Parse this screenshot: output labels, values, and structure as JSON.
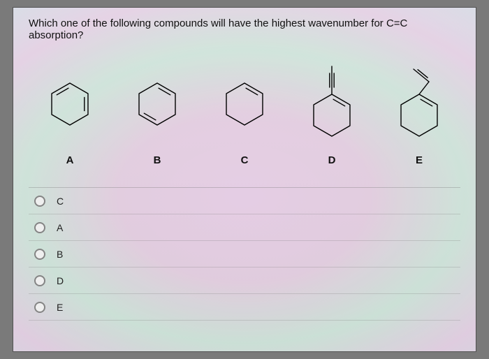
{
  "question": "Which one of the following compounds will have the highest wavenumber for C=C absorption?",
  "structures": {
    "stroke": "#000000",
    "stroke_width": 1.4,
    "hex_radius": 30,
    "items": [
      {
        "id": "A",
        "label": "A",
        "type": "cyclohexadiene-1-3",
        "substituent": null
      },
      {
        "id": "B",
        "label": "B",
        "type": "cyclohexadiene-1-4",
        "substituent": null
      },
      {
        "id": "C",
        "label": "C",
        "type": "cyclohexene",
        "substituent": null
      },
      {
        "id": "D",
        "label": "D",
        "type": "cyclohexene",
        "substituent": "ethynyl"
      },
      {
        "id": "E",
        "label": "E",
        "type": "cyclohexene",
        "substituent": "vinyl"
      }
    ]
  },
  "options": [
    {
      "value": "C",
      "label": "C",
      "selected": false
    },
    {
      "value": "A",
      "label": "A",
      "selected": false
    },
    {
      "value": "B",
      "label": "B",
      "selected": false
    },
    {
      "value": "D",
      "label": "D",
      "selected": false
    },
    {
      "value": "E",
      "label": "E",
      "selected": false
    }
  ]
}
